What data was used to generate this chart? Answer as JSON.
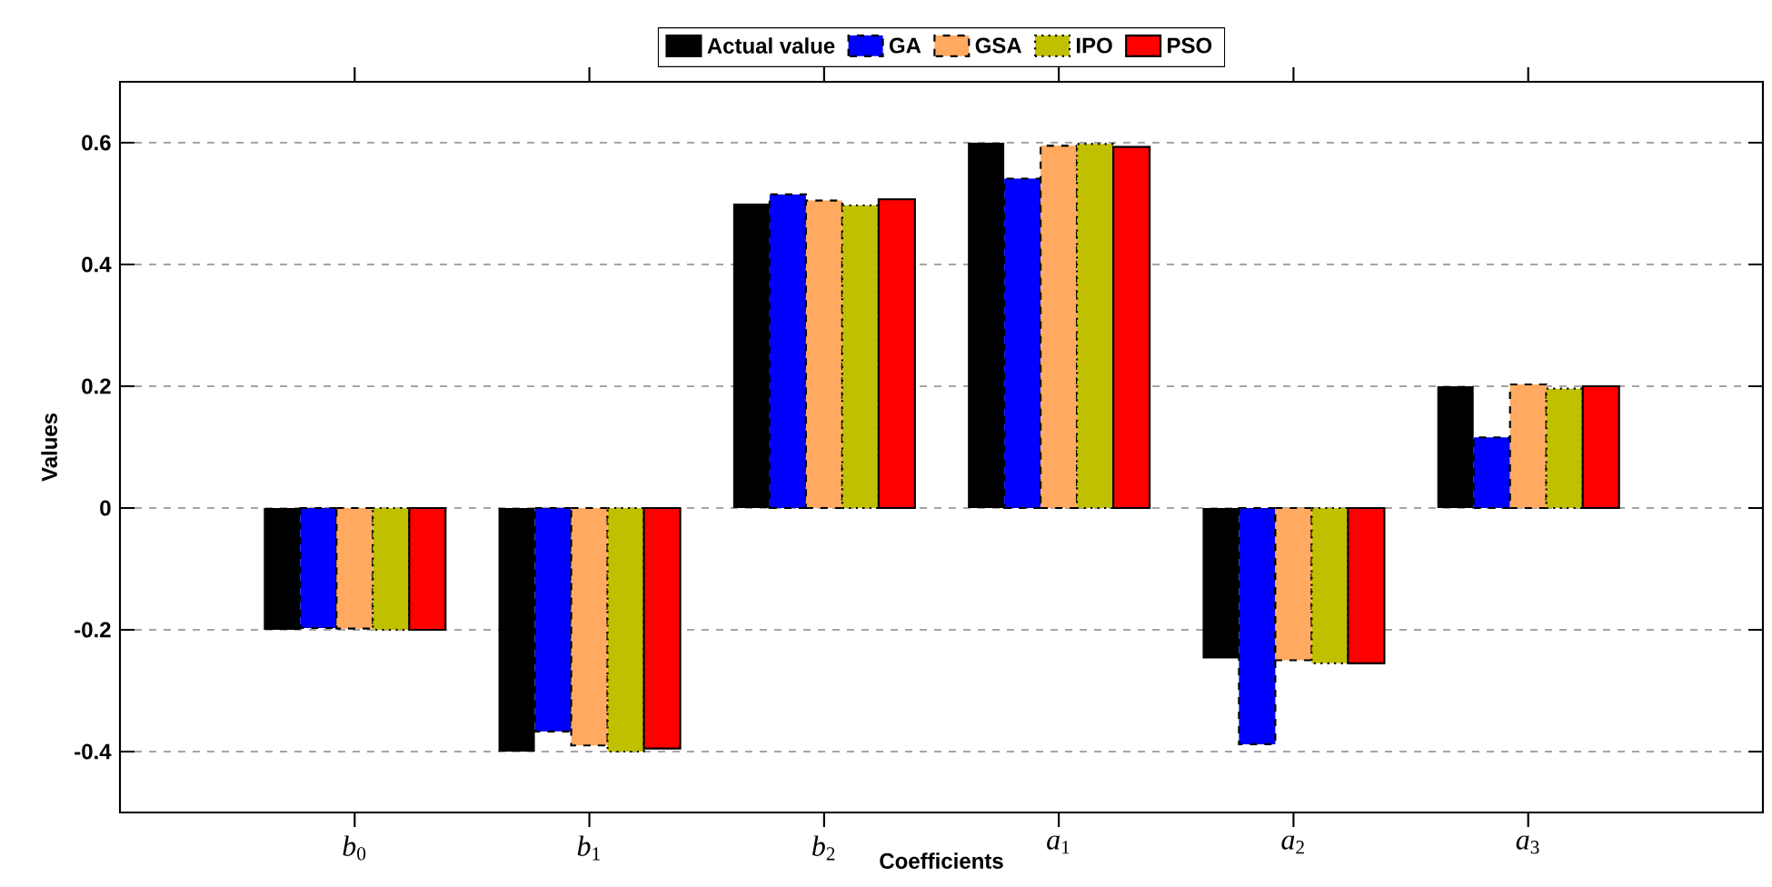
{
  "chart_data": {
    "type": "bar",
    "xlabel": "Coefficients",
    "ylabel": "Values",
    "categories": [
      "*b*$_{0}$",
      "*b*$_{1}$",
      "*b*$_{2}$",
      "*a*$_{1}$",
      "*a*$_{2}$",
      "*a*$_{3}$"
    ],
    "series": [
      {
        "name": "Actual value",
        "color": "#000000",
        "values": [
          -0.2,
          -0.4,
          0.5,
          0.6,
          -0.247,
          0.2
        ]
      },
      {
        "name": "GA",
        "color": "#0000ff",
        "line_style": "dashed",
        "values": [
          -0.197,
          -0.367,
          0.515,
          0.541,
          -0.388,
          0.116
        ]
      },
      {
        "name": "GSA",
        "color": "#ffaa60",
        "line_style": "dashed",
        "values": [
          -0.198,
          -0.39,
          0.505,
          0.595,
          -0.25,
          0.203
        ]
      },
      {
        "name": "IPO",
        "color": "#c0c000",
        "line_style": "dotted",
        "values": [
          -0.2,
          -0.4,
          0.497,
          0.598,
          -0.255,
          0.196
        ]
      },
      {
        "name": "PSO",
        "color": "#ff0000",
        "line_style": "solid",
        "values": [
          -0.2,
          -0.395,
          0.507,
          0.593,
          -0.255,
          0.2
        ]
      }
    ],
    "ylim": [
      -0.5,
      0.7
    ],
    "yticks": [
      -0.4,
      -0.2,
      0,
      0.2,
      0.4,
      0.6
    ],
    "grid": "y",
    "legend": "top"
  }
}
